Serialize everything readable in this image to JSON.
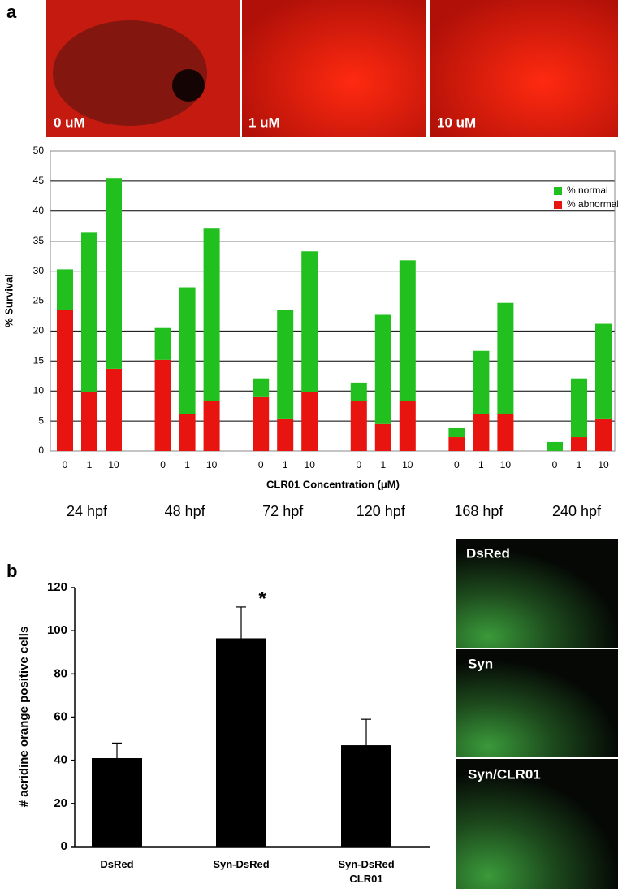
{
  "panel_labels": [
    "a",
    "b"
  ],
  "images_a": [
    {
      "label": "0 uM"
    },
    {
      "label": "1 uM"
    },
    {
      "label": "10 uM"
    }
  ],
  "images_b": [
    {
      "label": "DsRed"
    },
    {
      "label": "Syn"
    },
    {
      "label": "Syn/CLR01"
    }
  ],
  "chart_data": [
    {
      "type": "bar",
      "stacked": true,
      "y_label": "% Survival",
      "x_label": "CLR01 Concentration (μM)",
      "categories": [
        "0",
        "1",
        "10",
        "0",
        "1",
        "10",
        "0",
        "1",
        "10",
        "0",
        "1",
        "10",
        "0",
        "1",
        "10",
        "0",
        "1",
        "10"
      ],
      "group_labels": [
        "24 hpf",
        "48 hpf",
        "72 hpf",
        "120 hpf",
        "168 hpf",
        "240 hpf"
      ],
      "series": [
        {
          "name": "% abnormal",
          "color": "#e8140f",
          "values": [
            23.5,
            9.9,
            13.7,
            15.2,
            6.1,
            8.3,
            9.1,
            5.3,
            9.8,
            8.3,
            4.5,
            8.3,
            2.3,
            6.1,
            6.1,
            0,
            2.3,
            5.3
          ]
        },
        {
          "name": "% normal",
          "color": "#22c01e",
          "values": [
            6.8,
            26.5,
            31.8,
            5.3,
            21.2,
            28.8,
            3.0,
            18.2,
            23.5,
            3.1,
            18.2,
            23.5,
            1.5,
            10.6,
            18.6,
            1.5,
            9.8,
            15.9
          ]
        }
      ],
      "ylim": [
        0,
        50
      ],
      "yticks": [
        0,
        5,
        10,
        15,
        20,
        25,
        30,
        35,
        40,
        45,
        50
      ],
      "grid": true,
      "legend": "top-right"
    },
    {
      "type": "bar",
      "stacked": false,
      "y_label": "# acridine orange positive cells",
      "categories": [
        "DsRed",
        "Syn-DsRed",
        "Syn-DsRed\nCLR01"
      ],
      "values": [
        41,
        96.5,
        47
      ],
      "errors": [
        7,
        14.5,
        12
      ],
      "color": "#000000",
      "annotation": "*",
      "ylim": [
        0,
        120
      ],
      "yticks": [
        0,
        20,
        40,
        60,
        80,
        100,
        120
      ],
      "grid": false
    }
  ]
}
